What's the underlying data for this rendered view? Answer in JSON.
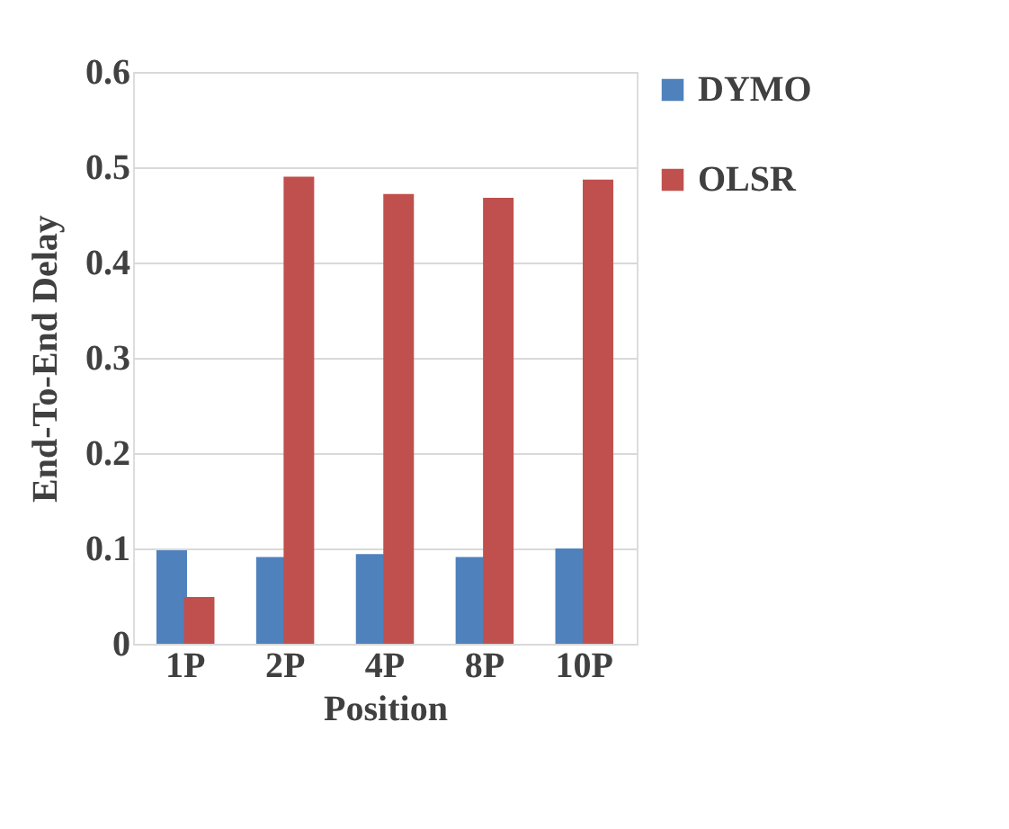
{
  "chart_data": {
    "type": "bar",
    "xlabel": "Position",
    "ylabel": "End-To-End Delay",
    "categories": [
      "1P",
      "2P",
      "4P",
      "8P",
      "10P"
    ],
    "series": [
      {
        "name": "DYMO",
        "color": "#4f81bd",
        "values": [
          0.098,
          0.091,
          0.094,
          0.091,
          0.1
        ]
      },
      {
        "name": "OLSR",
        "color": "#c0504d",
        "values": [
          0.049,
          0.49,
          0.472,
          0.468,
          0.487
        ]
      }
    ],
    "ylim": [
      0,
      0.6
    ],
    "yticks": [
      0,
      0.1,
      0.2,
      0.3,
      0.4,
      0.5,
      0.6
    ],
    "grid": "y",
    "legend": "right"
  }
}
